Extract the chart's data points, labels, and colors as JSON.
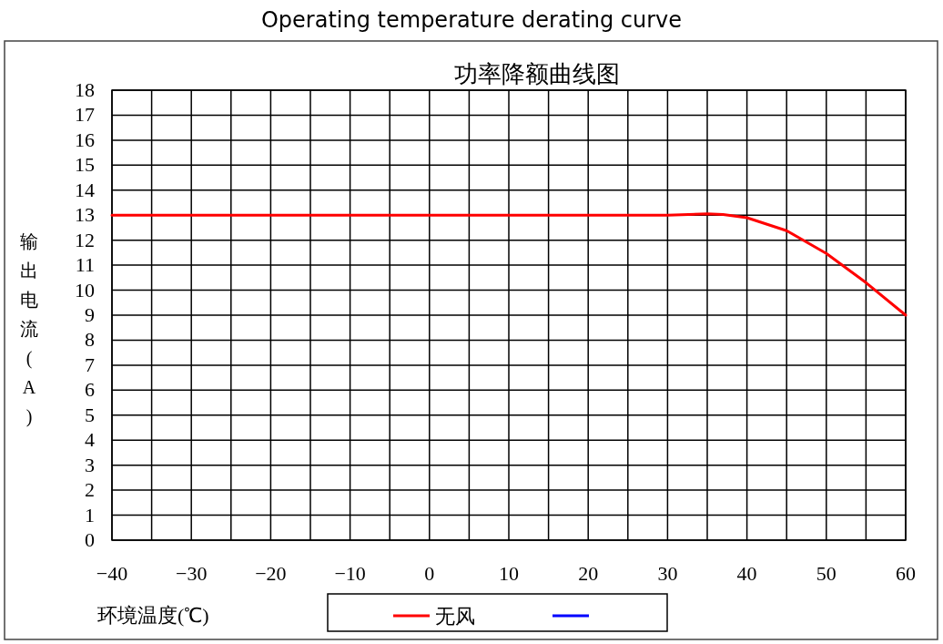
{
  "chart_data": {
    "type": "line",
    "title": "Operating temperature derating curve",
    "subtitle": "功率降额曲线图",
    "xlabel": "环境温度(℃)",
    "ylabel": "输出电流(A)",
    "xlim": [
      -40,
      60
    ],
    "ylim": [
      0,
      18
    ],
    "xticks": [
      -40,
      {
        "value": -35,
        "label": null
      },
      -30,
      {
        "value": -25,
        "label": null
      },
      -20,
      {
        "value": -15,
        "label": null
      },
      -10,
      {
        "value": -5,
        "label": null
      },
      0,
      {
        "value": 5,
        "label": null
      },
      10,
      {
        "value": 15,
        "label": null
      },
      20,
      {
        "value": 25,
        "label": null
      },
      30,
      {
        "value": 35,
        "label": null
      },
      40,
      {
        "value": 45,
        "label": null
      },
      50,
      {
        "value": 55,
        "label": null
      },
      60
    ],
    "yticks": [
      0,
      1,
      2,
      3,
      4,
      5,
      6,
      7,
      8,
      9,
      10,
      11,
      12,
      13,
      14,
      15,
      16,
      17,
      18
    ],
    "grid": true,
    "legend": "bottom",
    "marker": "none",
    "line_style": "solid",
    "series": [
      {
        "name": "无风",
        "color": "#ff0000",
        "x": [
          -40,
          -20,
          0,
          20,
          30,
          35,
          37,
          40,
          45,
          50,
          55,
          60
        ],
        "values": [
          13,
          13,
          13,
          13,
          13,
          13.05,
          13.03,
          12.9,
          12.38,
          11.47,
          10.3,
          9
        ]
      },
      {
        "color": "#0000ff"
      }
    ]
  }
}
